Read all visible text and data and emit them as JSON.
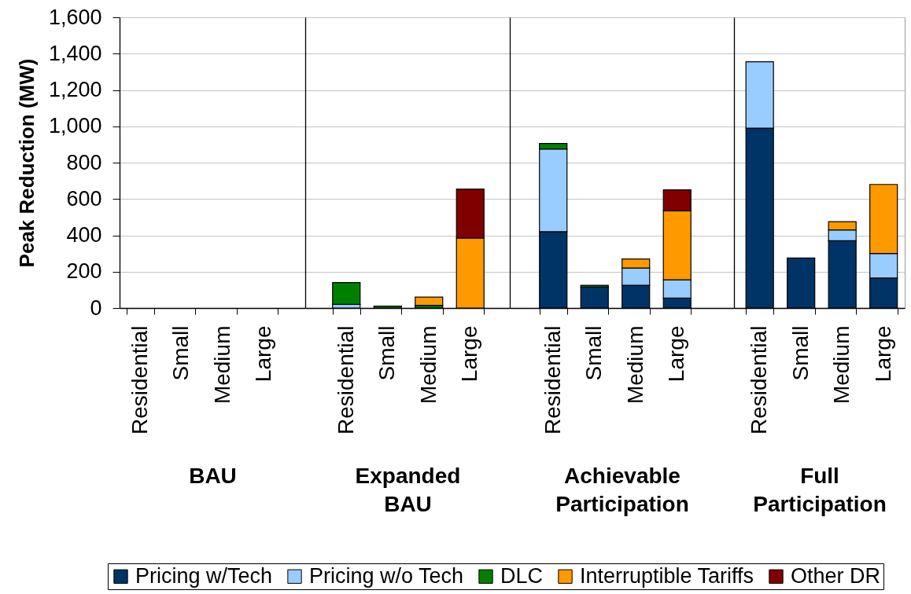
{
  "chart_data": [
    {
      "type": "bar",
      "stacked": true,
      "categories": [
        "Residential",
        "Small",
        "Medium",
        "Large"
      ],
      "xlabel": "BAU",
      "ylabel": "Peak Reduction (MW)",
      "ylim": [
        0,
        1600
      ],
      "yticks": [
        0,
        200,
        400,
        600,
        800,
        {
          "value": 1000,
          "label": "1,000"
        },
        {
          "value": 1200,
          "label": "1,200"
        },
        {
          "value": 1400,
          "label": "1,400"
        },
        {
          "value": 1600,
          "label": "1,600"
        }
      ],
      "grid": "y",
      "legend": "bottom",
      "series": [
        {
          "name": "Pricing w/Tech",
          "color": "#003366",
          "values": [
            null,
            null,
            null,
            null
          ]
        },
        {
          "name": "Pricing w/o Tech",
          "color": "#99ccff",
          "values": [
            null,
            null,
            null,
            null
          ]
        },
        {
          "name": "DLC",
          "color": "#008000",
          "values": [
            null,
            null,
            null,
            null
          ]
        },
        {
          "name": "Interruptible Tariffs",
          "color": "#ff9900",
          "values": [
            null,
            null,
            null,
            null
          ]
        },
        {
          "name": "Other DR",
          "color": "#800000",
          "values": [
            null,
            null,
            null,
            null
          ]
        }
      ]
    },
    {
      "type": "bar",
      "stacked": true,
      "categories": [
        "Residential",
        "Small",
        "Medium",
        "Large"
      ],
      "xlabel": "Expanded BAU",
      "ylim": [
        0,
        1600
      ],
      "yticks": [
        0,
        200,
        400,
        600,
        800,
        1000,
        1200,
        1400,
        1600
      ],
      "grid": "y",
      "tick_labels": "x",
      "series": [
        {
          "color": "#003366",
          "values": [
            null,
            null,
            null,
            null
          ]
        },
        {
          "color": "#99ccff",
          "values": [
            20,
            null,
            null,
            null
          ]
        },
        {
          "color": "#008000",
          "values": [
            120,
            10,
            15,
            null
          ]
        },
        {
          "color": "#ff9900",
          "values": [
            null,
            null,
            45,
            385
          ]
        },
        {
          "color": "#800000",
          "values": [
            null,
            null,
            null,
            270
          ]
        }
      ]
    },
    {
      "type": "bar",
      "stacked": true,
      "categories": [
        "Residential",
        "Small",
        "Medium",
        "Large"
      ],
      "xlabel": "Achievable Participation",
      "ylim": [
        0,
        1600
      ],
      "yticks": [
        0,
        200,
        400,
        600,
        800,
        1000,
        1200,
        1400,
        1600
      ],
      "grid": "y",
      "tick_labels": "x",
      "series": [
        {
          "color": "#003366",
          "values": [
            420,
            115,
            125,
            55
          ]
        },
        {
          "color": "#99ccff",
          "values": [
            455,
            null,
            95,
            100
          ]
        },
        {
          "color": "#008000",
          "values": [
            30,
            10,
            null,
            null
          ]
        },
        {
          "color": "#ff9900",
          "values": [
            null,
            null,
            50,
            380
          ]
        },
        {
          "color": "#800000",
          "values": [
            null,
            null,
            null,
            115
          ]
        }
      ]
    },
    {
      "type": "bar",
      "stacked": true,
      "categories": [
        "Residential",
        "Small",
        "Medium",
        "Large"
      ],
      "xlabel": "Full Participation",
      "ylim": [
        0,
        1600
      ],
      "yticks": [
        0,
        200,
        400,
        600,
        800,
        1000,
        1200,
        1400,
        1600
      ],
      "grid": "y",
      "tick_labels": "x",
      "series": [
        {
          "color": "#003366",
          "values": [
            990,
            275,
            370,
            165
          ]
        },
        {
          "color": "#99ccff",
          "values": [
            365,
            null,
            60,
            135
          ]
        },
        {
          "color": "#008000",
          "values": [
            null,
            null,
            null,
            null
          ]
        },
        {
          "color": "#ff9900",
          "values": [
            null,
            null,
            45,
            380
          ]
        },
        {
          "color": "#800000",
          "values": [
            null,
            null,
            null,
            null
          ]
        }
      ]
    }
  ]
}
